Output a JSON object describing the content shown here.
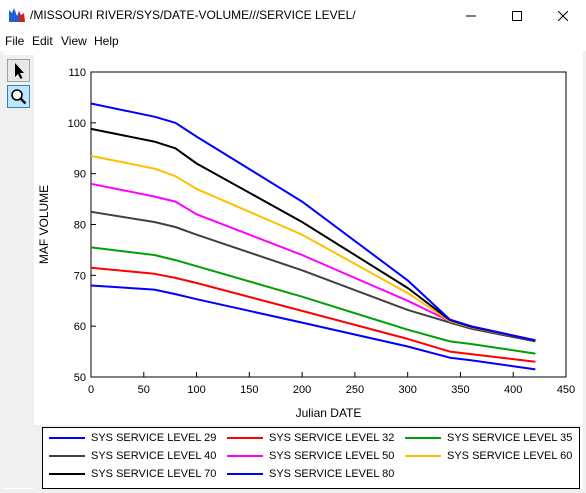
{
  "window": {
    "title": "/MISSOURI RIVER/SYS/DATE-VOLUME///SERVICE LEVEL/",
    "minimize_label": "–",
    "maximize_label": "□",
    "close_label": "✕"
  },
  "menu": {
    "items": [
      "File",
      "Edit",
      "View",
      "Help"
    ]
  },
  "toolbar": {
    "tools": [
      {
        "icon": "select-pointer-icon"
      },
      {
        "icon": "zoom-icon"
      }
    ]
  },
  "chart_data": {
    "type": "line",
    "title": "",
    "xlabel": "Julian DATE",
    "ylabel": "MAF VOLUME",
    "xlim": [
      0,
      450
    ],
    "ylim": [
      50,
      110
    ],
    "xticks": [
      0,
      50,
      100,
      150,
      200,
      250,
      300,
      350,
      400,
      450
    ],
    "yticks": [
      50,
      60,
      70,
      80,
      90,
      100,
      110
    ],
    "grid": false,
    "legend_position": "bottom",
    "series": [
      {
        "name": "SYS SERVICE LEVEL 29",
        "color": "#0000ff",
        "x": [
          0,
          60,
          80,
          100,
          200,
          300,
          340,
          360,
          421
        ],
        "y": [
          68,
          67.2,
          66.3,
          65.3,
          60.7,
          56,
          53.8,
          53.3,
          51.5
        ]
      },
      {
        "name": "SYS SERVICE LEVEL 32",
        "color": "#ff0000",
        "x": [
          0,
          60,
          80,
          100,
          200,
          300,
          340,
          360,
          421
        ],
        "y": [
          71.5,
          70.3,
          69.5,
          68.5,
          63,
          57.5,
          55,
          54.5,
          53
        ]
      },
      {
        "name": "SYS SERVICE LEVEL 35",
        "color": "#00a000",
        "x": [
          0,
          60,
          80,
          100,
          200,
          300,
          340,
          360,
          421
        ],
        "y": [
          75.5,
          74,
          73,
          71.8,
          65.8,
          59.3,
          57,
          56.5,
          54.6
        ]
      },
      {
        "name": "SYS SERVICE LEVEL 40",
        "color": "#404040",
        "x": [
          0,
          60,
          80,
          100,
          200,
          300,
          340,
          360,
          421
        ],
        "y": [
          82.5,
          80.5,
          79.5,
          78,
          71,
          63.2,
          60.7,
          59.5,
          57
        ]
      },
      {
        "name": "SYS SERVICE LEVEL 50",
        "color": "#ff00ff",
        "x": [
          0,
          60,
          80,
          100,
          200,
          300,
          340,
          360,
          421
        ],
        "y": [
          88,
          85.5,
          84.5,
          82,
          74,
          65,
          61,
          59.8,
          57.2
        ]
      },
      {
        "name": "SYS SERVICE LEVEL 60",
        "color": "#ffc000",
        "x": [
          0,
          60,
          80,
          100,
          200,
          300,
          340,
          360,
          421
        ],
        "y": [
          93.5,
          91,
          89.5,
          87,
          78,
          66.5,
          61,
          59.8,
          57.2
        ]
      },
      {
        "name": "SYS SERVICE LEVEL 70",
        "color": "#000000",
        "x": [
          0,
          60,
          80,
          100,
          200,
          300,
          340,
          360,
          421
        ],
        "y": [
          98.8,
          96.3,
          95,
          92,
          80.5,
          67.5,
          61.2,
          59.9,
          57.2
        ]
      },
      {
        "name": "SYS SERVICE LEVEL 80",
        "color": "#0000ff",
        "x": [
          0,
          60,
          80,
          100,
          200,
          300,
          340,
          360,
          421
        ],
        "y": [
          103.8,
          101.2,
          100,
          97.3,
          84.5,
          69,
          61.3,
          60,
          57.2
        ]
      }
    ]
  }
}
